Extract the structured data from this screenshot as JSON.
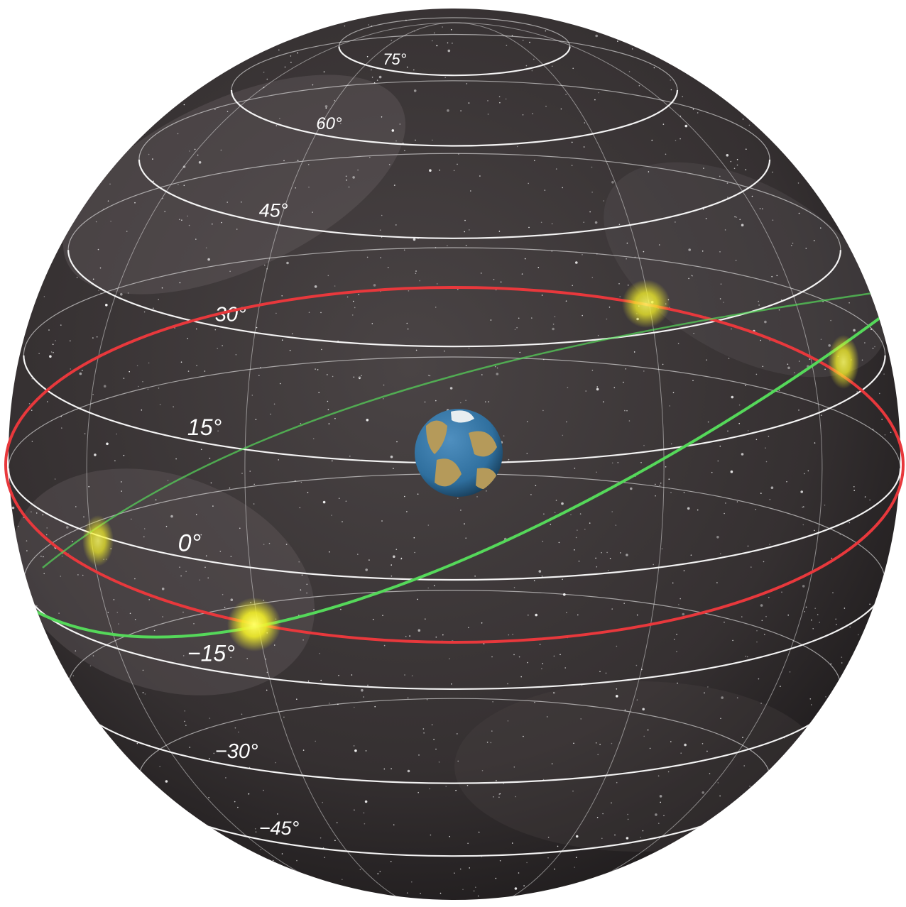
{
  "diagram": {
    "latitude_labels": [
      {
        "text": "75°",
        "lat": 75
      },
      {
        "text": "60°",
        "lat": 60
      },
      {
        "text": "45°",
        "lat": 45
      },
      {
        "text": "30°",
        "lat": 30
      },
      {
        "text": "15°",
        "lat": 15
      },
      {
        "text": "0°",
        "lat": 0
      },
      {
        "text": "−15°",
        "lat": -15
      },
      {
        "text": "−30°",
        "lat": -30
      },
      {
        "text": "−45°",
        "lat": -45
      }
    ],
    "colors": {
      "sphere": "#3a3536",
      "grid_line": "#ffffff",
      "celestial_equator": "#e8383c",
      "ecliptic": "#55d85a",
      "sun": "#f4f02a",
      "earth_ocean": "#2f6f9e",
      "earth_land": "#b59a5a"
    },
    "icons": [
      "earth-icon",
      "sun-icon"
    ]
  }
}
